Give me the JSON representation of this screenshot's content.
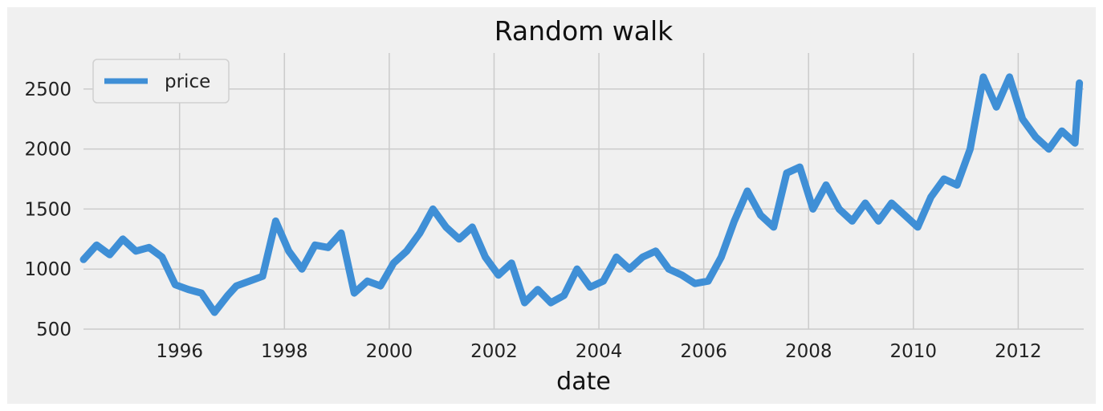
{
  "chart_data": {
    "type": "line",
    "title": "Random walk",
    "xlabel": "date",
    "ylabel": "",
    "xlim": [
      "1994-03-01",
      "2013-04-01"
    ],
    "ylim": [
      500,
      2800
    ],
    "xticks": [
      "1996",
      "1998",
      "2000",
      "2002",
      "2004",
      "2006",
      "2008",
      "2010",
      "2012"
    ],
    "yticks": [
      "500",
      "1000",
      "1500",
      "2000",
      "2500"
    ],
    "grid": true,
    "legend_position": "top-left",
    "colors": {
      "line": "#3f8fd6",
      "background": "#f0f0f0",
      "grid": "#cbcbcb"
    },
    "series": [
      {
        "name": "price",
        "x": [
          "1994-03",
          "1994-06",
          "1994-09",
          "1994-12",
          "1995-03",
          "1995-06",
          "1995-09",
          "1995-12",
          "1996-03",
          "1996-06",
          "1996-09",
          "1996-12",
          "1997-02",
          "1997-05",
          "1997-08",
          "1997-11",
          "1998-02",
          "1998-05",
          "1998-08",
          "1998-11",
          "1999-02",
          "1999-05",
          "1999-08",
          "1999-11",
          "2000-02",
          "2000-05",
          "2000-08",
          "2000-11",
          "2001-02",
          "2001-05",
          "2001-08",
          "2001-11",
          "2002-02",
          "2002-05",
          "2002-08",
          "2002-11",
          "2003-02",
          "2003-05",
          "2003-08",
          "2003-11",
          "2004-02",
          "2004-05",
          "2004-08",
          "2004-11",
          "2005-02",
          "2005-05",
          "2005-08",
          "2005-11",
          "2006-02",
          "2006-05",
          "2006-08",
          "2006-11",
          "2007-02",
          "2007-05",
          "2007-08",
          "2007-11",
          "2008-02",
          "2008-05",
          "2008-08",
          "2008-11",
          "2009-02",
          "2009-05",
          "2009-08",
          "2009-11",
          "2010-02",
          "2010-05",
          "2010-08",
          "2010-11",
          "2011-02",
          "2011-05",
          "2011-08",
          "2011-11",
          "2012-02",
          "2012-05",
          "2012-08",
          "2012-11",
          "2013-02",
          "2013-03"
        ],
        "y": [
          1080,
          1200,
          1120,
          1250,
          1150,
          1180,
          1100,
          870,
          830,
          800,
          640,
          780,
          860,
          900,
          940,
          1400,
          1150,
          1000,
          1200,
          1180,
          1300,
          800,
          900,
          860,
          1050,
          1150,
          1300,
          1500,
          1350,
          1250,
          1350,
          1100,
          950,
          1050,
          720,
          830,
          720,
          780,
          1000,
          850,
          900,
          1100,
          1000,
          1100,
          1150,
          1000,
          950,
          880,
          900,
          1100,
          1400,
          1650,
          1450,
          1350,
          1800,
          1850,
          1500,
          1700,
          1500,
          1400,
          1550,
          1400,
          1550,
          1450,
          1350,
          1600,
          1750,
          1700,
          2000,
          2600,
          2350,
          2600,
          2250,
          2100,
          2000,
          2150,
          2050,
          2550
        ]
      }
    ]
  }
}
